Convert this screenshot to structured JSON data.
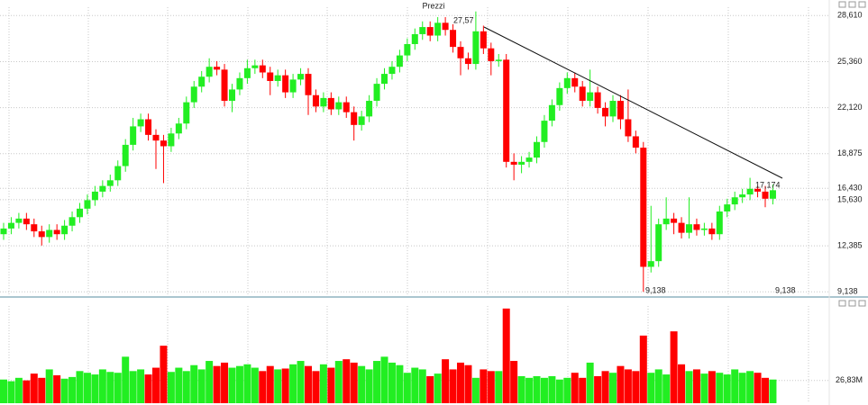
{
  "chart_data": [
    {
      "type": "candlestick",
      "title": "Prezzi",
      "up_color": "#22ee22",
      "down_color": "#ff0000",
      "grid": true,
      "ylim": [
        8.9,
        29.2
      ],
      "yticks": [
        {
          "value": 9.138,
          "label": "9,138"
        },
        {
          "value": 12.385,
          "label": "12,385"
        },
        {
          "value": 15.63,
          "label": "15,630"
        },
        {
          "value": 16.43,
          "label": "16,430"
        },
        {
          "value": 18.875,
          "label": "18,875"
        },
        {
          "value": 22.12,
          "label": "22,120"
        },
        {
          "value": 25.36,
          "label": "25,360"
        },
        {
          "value": 28.61,
          "label": "28,610"
        }
      ],
      "annotations": [
        "27,57",
        "17,174",
        "9,138",
        "9,138"
      ],
      "open": [
        13.2,
        13.6,
        14.0,
        14.3,
        13.9,
        13.4,
        13.0,
        13.5,
        13.2,
        13.8,
        14.4,
        15.0,
        15.6,
        16.2,
        16.6,
        17.0,
        18.0,
        19.5,
        20.8,
        21.3,
        20.2,
        19.8,
        19.4,
        20.3,
        21.0,
        22.5,
        23.6,
        24.3,
        25.0,
        24.8,
        22.6,
        23.4,
        24.2,
        24.9,
        25.1,
        24.6,
        24.0,
        24.4,
        23.2,
        24.1,
        24.5,
        23.0,
        22.2,
        22.8,
        22.0,
        22.5,
        21.8,
        20.9,
        21.5,
        22.6,
        23.8,
        24.5,
        25.0,
        25.8,
        26.6,
        27.3,
        27.8,
        27.2,
        28.1,
        27.6,
        26.4,
        25.6,
        25.2,
        27.5,
        26.3,
        25.4,
        25.5,
        18.3,
        18.1,
        18.3,
        18.6,
        19.7,
        21.2,
        22.3,
        23.5,
        24.2,
        23.6,
        22.6,
        23.2,
        22.1,
        21.5,
        22.6,
        21.3,
        20.1,
        19.3,
        10.9,
        11.3,
        13.9,
        14.3,
        14.0,
        13.3,
        13.9,
        13.5,
        13.6,
        13.2,
        14.8,
        15.3,
        15.8,
        16.0,
        16.4,
        16.2,
        15.7
      ],
      "high": [
        14.0,
        14.4,
        14.7,
        14.7,
        14.3,
        13.8,
        13.9,
        13.9,
        14.2,
        14.8,
        15.4,
        16.0,
        16.6,
        17.0,
        17.4,
        18.4,
        19.9,
        21.4,
        21.7,
        21.7,
        20.6,
        20.2,
        20.7,
        21.4,
        22.9,
        24.0,
        24.7,
        25.6,
        25.4,
        25.2,
        23.8,
        24.6,
        25.5,
        25.5,
        25.5,
        25.0,
        24.8,
        24.8,
        24.5,
        24.9,
        24.9,
        23.4,
        23.2,
        23.2,
        22.9,
        22.9,
        22.2,
        21.9,
        23.0,
        24.2,
        24.9,
        25.4,
        26.2,
        27.0,
        27.7,
        28.2,
        28.2,
        28.5,
        28.5,
        28.0,
        26.8,
        26.0,
        28.9,
        27.9,
        26.7,
        25.9,
        25.9,
        18.9,
        18.7,
        19.0,
        20.1,
        21.6,
        22.7,
        23.9,
        24.6,
        24.6,
        24.0,
        24.8,
        23.6,
        22.5,
        23.0,
        23.0,
        23.4,
        20.5,
        19.7,
        15.2,
        14.3,
        15.8,
        14.7,
        14.4,
        15.8,
        14.3,
        14.0,
        14.0,
        15.2,
        15.7,
        16.2,
        16.4,
        17.174,
        16.6,
        16.6,
        16.7
      ],
      "low": [
        12.8,
        13.2,
        13.6,
        13.5,
        13.0,
        12.4,
        12.6,
        12.8,
        12.8,
        13.4,
        14.0,
        14.6,
        15.2,
        15.8,
        16.2,
        16.6,
        17.6,
        19.1,
        20.4,
        19.8,
        17.8,
        16.8,
        19.0,
        19.9,
        20.6,
        22.1,
        23.2,
        23.9,
        24.4,
        22.2,
        21.8,
        23.0,
        23.8,
        24.5,
        24.2,
        23.0,
        23.6,
        22.8,
        22.8,
        23.7,
        21.6,
        21.8,
        21.8,
        21.6,
        21.6,
        21.4,
        19.8,
        20.5,
        21.1,
        22.2,
        23.4,
        24.1,
        24.6,
        25.4,
        26.2,
        26.9,
        26.8,
        26.8,
        27.2,
        26.0,
        24.4,
        24.8,
        24.8,
        25.9,
        24.4,
        25.0,
        17.9,
        17.0,
        17.5,
        17.9,
        18.2,
        19.3,
        20.8,
        21.9,
        23.1,
        23.2,
        22.2,
        22.2,
        21.7,
        20.8,
        21.1,
        20.6,
        19.7,
        18.9,
        9.138,
        10.5,
        10.9,
        13.5,
        13.2,
        12.9,
        12.9,
        13.1,
        13.1,
        12.8,
        12.8,
        14.4,
        14.9,
        15.4,
        15.6,
        15.8,
        15.1,
        15.3
      ],
      "close": [
        13.6,
        14.0,
        14.3,
        13.9,
        13.4,
        13.0,
        13.5,
        13.2,
        13.8,
        14.4,
        15.0,
        15.6,
        16.2,
        16.6,
        17.0,
        18.0,
        19.5,
        20.8,
        21.3,
        20.2,
        19.8,
        19.4,
        20.3,
        21.0,
        22.5,
        23.6,
        24.3,
        25.0,
        24.8,
        22.6,
        23.4,
        24.2,
        24.9,
        25.1,
        24.6,
        24.0,
        24.4,
        23.2,
        24.1,
        24.5,
        23.0,
        22.2,
        22.8,
        22.0,
        22.5,
        21.8,
        20.9,
        21.5,
        22.6,
        23.8,
        24.5,
        25.0,
        25.8,
        26.6,
        27.3,
        27.8,
        27.2,
        28.1,
        27.6,
        26.4,
        25.6,
        25.2,
        27.5,
        26.3,
        25.4,
        25.5,
        18.3,
        18.1,
        18.3,
        18.6,
        19.7,
        21.2,
        22.3,
        23.5,
        24.2,
        23.6,
        22.6,
        23.2,
        22.1,
        21.5,
        22.6,
        21.3,
        20.1,
        19.3,
        10.9,
        11.3,
        13.9,
        14.3,
        14.0,
        13.3,
        13.9,
        13.5,
        13.6,
        13.2,
        14.8,
        15.3,
        15.8,
        16.0,
        16.4,
        16.2,
        15.7,
        16.3
      ]
    },
    {
      "type": "volume",
      "ylim": [
        0,
        115
      ],
      "yticks": [
        {
          "value": 26.83,
          "label": "26,83M"
        }
      ],
      "values": [
        28,
        26,
        30,
        27,
        35,
        30,
        40,
        33,
        29,
        31,
        38,
        36,
        34,
        40,
        37,
        36,
        55,
        38,
        40,
        34,
        42,
        68,
        37,
        42,
        38,
        45,
        40,
        50,
        44,
        48,
        42,
        44,
        46,
        42,
        38,
        44,
        40,
        41,
        46,
        50,
        44,
        38,
        46,
        42,
        50,
        52,
        48,
        44,
        40,
        50,
        55,
        48,
        45,
        36,
        42,
        40,
        32,
        35,
        52,
        40,
        48,
        45,
        30,
        40,
        38,
        38,
        112,
        50,
        32,
        30,
        32,
        30,
        32,
        28,
        30,
        36,
        30,
        48,
        32,
        38,
        36,
        44,
        40,
        38,
        80,
        36,
        40,
        34,
        85,
        46,
        38,
        40,
        35,
        38,
        36,
        34,
        40,
        36,
        38,
        36,
        30,
        28
      ]
    }
  ]
}
